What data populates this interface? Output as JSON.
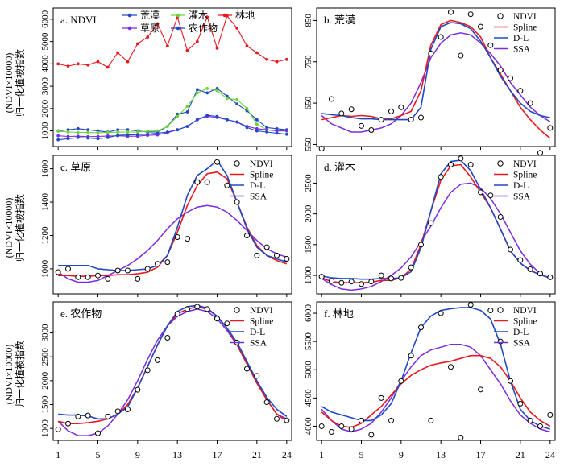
{
  "y_axis_label": {
    "line1": "(NDVI×10000)",
    "line2": "归一化植被指数"
  },
  "x_ticks": [
    1,
    5,
    9,
    13,
    17,
    21,
    24
  ],
  "colors": {
    "ndvi": "#000000",
    "spline": "#e8181f",
    "dl": "#1f49c4",
    "ssa": "#7b2be0"
  },
  "chart_data": [
    {
      "id": "a",
      "type": "line",
      "title": "a. NDVI",
      "ylim": [
        300,
        6500
      ],
      "yticks": [
        0,
        1000,
        2000,
        3000,
        4000,
        5000,
        6000
      ],
      "legend_rows": [
        [
          "荒漠",
          "灌木",
          "林地"
        ],
        [
          "草原",
          "农作物"
        ]
      ],
      "x": [
        1,
        2,
        3,
        4,
        5,
        6,
        7,
        8,
        9,
        10,
        11,
        12,
        13,
        14,
        15,
        16,
        17,
        18,
        19,
        20,
        21,
        22,
        23,
        24
      ],
      "series": [
        {
          "name": "荒漠",
          "color": "#1f49c4",
          "values": [
            1000,
            1050,
            1100,
            1050,
            1000,
            950,
            1050,
            1050,
            1000,
            950,
            950,
            1200,
            1750,
            1850,
            2850,
            2700,
            2900,
            2550,
            2200,
            1900,
            1500,
            1150,
            1100,
            1050
          ]
        },
        {
          "name": "灌木",
          "color": "#6bd63a",
          "values": [
            980,
            950,
            930,
            930,
            920,
            930,
            940,
            950,
            950,
            990,
            1000,
            1200,
            1650,
            2100,
            2700,
            2900,
            2800,
            2450,
            2400,
            2000,
            1300,
            1050,
            1000,
            990
          ]
        },
        {
          "name": "林地",
          "color": "#e8181f",
          "values": [
            4000,
            3900,
            4000,
            3950,
            4100,
            3850,
            4500,
            4100,
            4900,
            5200,
            5800,
            4800,
            6100,
            4600,
            5000,
            6100,
            4700,
            6150,
            5600,
            4800,
            4500,
            4200,
            4100,
            4200
          ]
        },
        {
          "name": "草原",
          "color": "#7b2be0",
          "values": [
            780,
            750,
            760,
            740,
            750,
            770,
            780,
            760,
            760,
            800,
            820,
            920,
            1050,
            1200,
            1500,
            1650,
            1600,
            1500,
            1400,
            1200,
            1100,
            1050,
            1000,
            1010
          ]
        },
        {
          "name": "农作物",
          "color": "#1f49c4",
          "values": [
            600,
            650,
            700,
            680,
            650,
            700,
            800,
            820,
            830,
            850,
            900,
            950,
            1050,
            1200,
            1500,
            1700,
            1650,
            1500,
            1400,
            1150,
            1000,
            950,
            900,
            850
          ]
        }
      ]
    },
    {
      "id": "b",
      "type": "line",
      "title": "b. 荒漠",
      "ylim": [
        545,
        880
      ],
      "yticks": [
        550,
        650,
        750,
        850
      ],
      "legend": [
        "NDVI",
        "Spline",
        "D-L",
        "SSA"
      ],
      "x": [
        1,
        2,
        3,
        4,
        5,
        6,
        7,
        8,
        9,
        10,
        11,
        12,
        13,
        14,
        15,
        16,
        17,
        18,
        19,
        20,
        21,
        22,
        23,
        24
      ],
      "ndvi": [
        540,
        660,
        625,
        635,
        595,
        585,
        610,
        630,
        640,
        610,
        615,
        770,
        810,
        870,
        765,
        865,
        835,
        790,
        730,
        710,
        680,
        650,
        530,
        590
      ],
      "spline": [
        610,
        615,
        620,
        618,
        620,
        618,
        612,
        612,
        620,
        630,
        680,
        790,
        840,
        850,
        845,
        835,
        810,
        760,
        720,
        680,
        640,
        610,
        585,
        565
      ],
      "dl": [
        625,
        622,
        620,
        615,
        612,
        612,
        610,
        610,
        610,
        610,
        640,
        780,
        835,
        845,
        842,
        830,
        800,
        760,
        715,
        680,
        650,
        630,
        620,
        615
      ],
      "ssa": [
        620,
        600,
        590,
        580,
        580,
        585,
        590,
        600,
        620,
        650,
        700,
        760,
        795,
        815,
        820,
        815,
        795,
        770,
        740,
        700,
        670,
        640,
        620,
        605
      ]
    },
    {
      "id": "c",
      "type": "line",
      "title": "c. 草原",
      "ylim": [
        850,
        1680
      ],
      "yticks": [
        1000,
        1200,
        1400,
        1600
      ],
      "legend": [
        "NDVI",
        "Spline",
        "D-L",
        "SSA"
      ],
      "x": [
        1,
        2,
        3,
        4,
        5,
        6,
        7,
        8,
        9,
        10,
        11,
        12,
        13,
        14,
        15,
        16,
        17,
        18,
        19,
        20,
        21,
        22,
        23,
        24
      ],
      "ndvi": [
        980,
        1000,
        950,
        950,
        960,
        940,
        990,
        990,
        940,
        1000,
        1030,
        1040,
        1190,
        1180,
        1520,
        1520,
        1640,
        1500,
        1400,
        1200,
        1080,
        1130,
        1080,
        1060
      ],
      "spline": [
        960,
        960,
        955,
        955,
        960,
        960,
        965,
        965,
        970,
        980,
        1010,
        1080,
        1220,
        1380,
        1500,
        1570,
        1580,
        1540,
        1400,
        1250,
        1140,
        1080,
        1050,
        1030
      ],
      "dl": [
        1020,
        1020,
        1020,
        1020,
        1000,
        995,
        990,
        990,
        995,
        1000,
        1020,
        1080,
        1250,
        1440,
        1560,
        1600,
        1650,
        1560,
        1400,
        1240,
        1130,
        1080,
        1060,
        1040
      ],
      "ssa": [
        980,
        940,
        920,
        920,
        930,
        960,
        990,
        1020,
        1060,
        1110,
        1170,
        1240,
        1300,
        1340,
        1370,
        1380,
        1370,
        1340,
        1290,
        1230,
        1170,
        1120,
        1090,
        1070
      ]
    },
    {
      "id": "d",
      "type": "line",
      "title": "d. 灌木",
      "ylim": [
        700,
        2950
      ],
      "yticks": [
        1000,
        1500,
        2000,
        2500
      ],
      "legend": [
        "NDVI",
        "Spline",
        "D-L",
        "SSA"
      ],
      "x": [
        1,
        2,
        3,
        4,
        5,
        6,
        7,
        8,
        9,
        10,
        11,
        12,
        13,
        14,
        15,
        16,
        17,
        18,
        19,
        20,
        21,
        22,
        23,
        24
      ],
      "ndvi": [
        980,
        910,
        880,
        900,
        860,
        900,
        1000,
        950,
        960,
        1130,
        1500,
        1850,
        2600,
        2800,
        2900,
        2800,
        2350,
        2300,
        1950,
        1420,
        1250,
        1100,
        1030,
        970
      ],
      "spline": [
        960,
        900,
        880,
        880,
        880,
        890,
        920,
        920,
        960,
        1100,
        1500,
        2050,
        2550,
        2780,
        2800,
        2600,
        2350,
        2100,
        1750,
        1400,
        1200,
        1080,
        1010,
        960
      ],
      "dl": [
        990,
        960,
        950,
        950,
        940,
        940,
        950,
        950,
        960,
        1060,
        1450,
        2050,
        2650,
        2850,
        2870,
        2700,
        2400,
        2100,
        1750,
        1400,
        1200,
        1080,
        1010,
        960
      ],
      "ssa": [
        950,
        850,
        780,
        760,
        780,
        820,
        900,
        1000,
        1120,
        1300,
        1550,
        1800,
        2100,
        2350,
        2480,
        2500,
        2420,
        2250,
        2000,
        1700,
        1400,
        1180,
        1030,
        950
      ]
    },
    {
      "id": "e",
      "type": "line",
      "title": "e. 农作物",
      "ylim": [
        750,
        3650
      ],
      "yticks": [
        1000,
        1500,
        2000,
        2500,
        3000
      ],
      "legend": [
        "NDVI",
        "Spline",
        "D-L",
        "SSA"
      ],
      "x": [
        1,
        2,
        3,
        4,
        5,
        6,
        7,
        8,
        9,
        10,
        11,
        12,
        13,
        14,
        15,
        16,
        17,
        18,
        19,
        20,
        21,
        22,
        23,
        24
      ],
      "ndvi": [
        980,
        1100,
        1250,
        1270,
        900,
        1250,
        1360,
        1400,
        1810,
        2220,
        2430,
        2900,
        3400,
        3500,
        3550,
        3500,
        3300,
        3200,
        2800,
        2250,
        2100,
        1550,
        1200,
        1170
      ],
      "spline": [
        1150,
        1100,
        1100,
        1120,
        1150,
        1200,
        1300,
        1500,
        1850,
        2300,
        2750,
        3150,
        3400,
        3500,
        3550,
        3500,
        3350,
        3100,
        2750,
        2350,
        1950,
        1600,
        1300,
        1150
      ],
      "dl": [
        1300,
        1280,
        1280,
        1260,
        1200,
        1200,
        1300,
        1450,
        1850,
        2300,
        2750,
        3150,
        3450,
        3550,
        3580,
        3520,
        3350,
        3100,
        2800,
        2400,
        2000,
        1650,
        1400,
        1250
      ],
      "ssa": [
        1150,
        950,
        850,
        850,
        900,
        1050,
        1300,
        1600,
        2000,
        2450,
        2850,
        3150,
        3350,
        3450,
        3500,
        3450,
        3300,
        3050,
        2750,
        2350,
        1950,
        1600,
        1300,
        1200
      ]
    },
    {
      "id": "f",
      "type": "line",
      "title": "f. 林地",
      "ylim": [
        3750,
        6200
      ],
      "yticks": [
        4000,
        4500,
        5000,
        5500,
        6000
      ],
      "legend": [
        "NDVI",
        "Spline",
        "D-L",
        "SSA"
      ],
      "x": [
        1,
        2,
        3,
        4,
        5,
        6,
        7,
        8,
        9,
        10,
        11,
        12,
        13,
        14,
        15,
        16,
        17,
        18,
        19,
        20,
        21,
        22,
        23,
        24
      ],
      "ndvi": [
        4000,
        3900,
        4000,
        3950,
        4100,
        3850,
        4500,
        4100,
        4800,
        5250,
        5750,
        4100,
        6000,
        5050,
        3800,
        6150,
        4650,
        6050,
        5500,
        4800,
        4400,
        4100,
        4000,
        4200
      ],
      "spline": [
        4250,
        4100,
        4000,
        3980,
        4050,
        4200,
        4350,
        4550,
        4750,
        4900,
        5000,
        5080,
        5120,
        5150,
        5200,
        5250,
        5250,
        5200,
        5050,
        4800,
        4500,
        4250,
        4100,
        4000
      ],
      "dl": [
        4350,
        4250,
        4200,
        4150,
        4100,
        4100,
        4200,
        4400,
        4800,
        5300,
        5750,
        5950,
        6050,
        6080,
        6100,
        6100,
        6050,
        5900,
        5450,
        4800,
        4300,
        4100,
        4000,
        3950
      ],
      "ssa": [
        4300,
        4100,
        3950,
        3900,
        3950,
        4050,
        4250,
        4500,
        4800,
        5050,
        5250,
        5350,
        5400,
        5450,
        5450,
        5400,
        5250,
        5000,
        4750,
        4450,
        4200,
        4050,
        3950,
        3900
      ]
    }
  ]
}
